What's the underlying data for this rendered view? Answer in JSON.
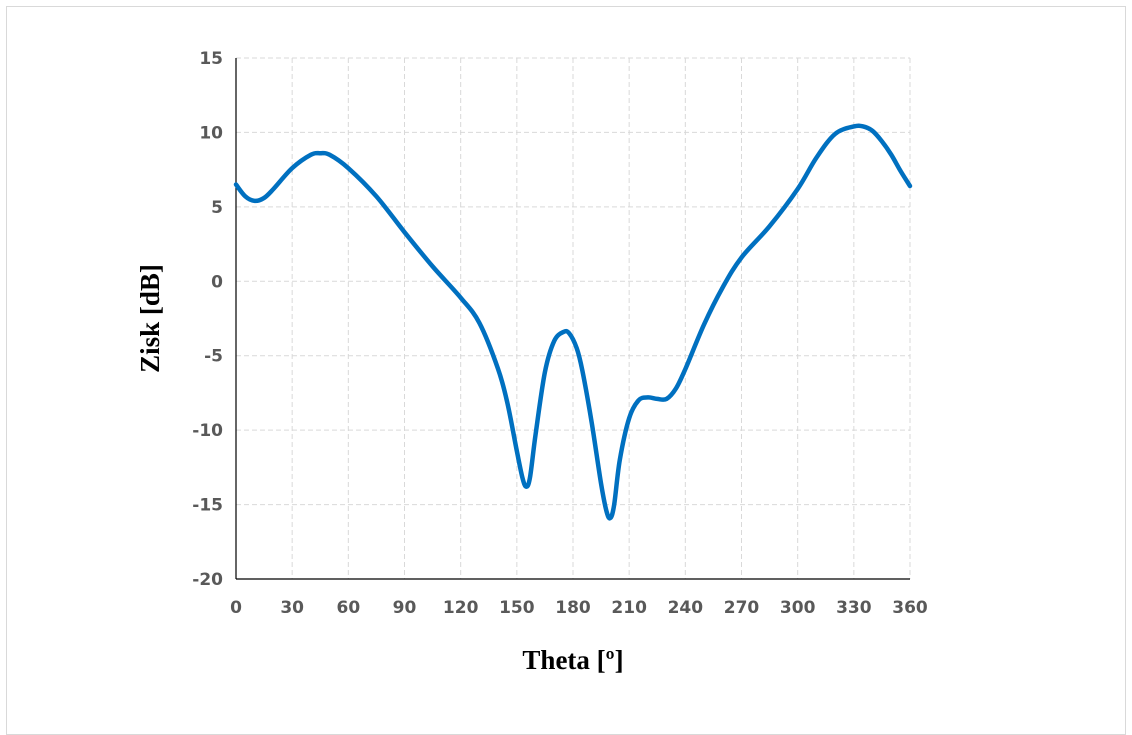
{
  "chart_data": {
    "type": "line",
    "title": "",
    "xlabel": "Theta [º]",
    "ylabel": "Zisk [dB]",
    "xlim": [
      0,
      360
    ],
    "ylim": [
      -20,
      15
    ],
    "x_ticks": [
      0,
      30,
      60,
      90,
      120,
      150,
      180,
      210,
      240,
      270,
      300,
      330,
      360
    ],
    "y_ticks": [
      -20,
      -15,
      -10,
      -5,
      0,
      5,
      10,
      15
    ],
    "grid": true,
    "legend": "none",
    "colors": {
      "series": "#0070c0",
      "grid": "#d9d9d9",
      "tick_text": "#595959"
    },
    "series": [
      {
        "x": [
          0,
          5,
          10,
          15,
          20,
          30,
          40,
          45,
          50,
          60,
          75,
          90,
          105,
          120,
          130,
          140,
          145,
          150,
          153,
          155,
          157,
          160,
          165,
          170,
          175,
          178,
          182,
          185,
          190,
          195,
          198,
          200,
          202,
          205,
          210,
          215,
          220,
          225,
          230,
          235,
          240,
          250,
          260,
          270,
          285,
          300,
          310,
          320,
          330,
          335,
          340,
          345,
          350,
          355,
          360
        ],
        "y": [
          6.5,
          5.7,
          5.4,
          5.6,
          6.2,
          7.6,
          8.5,
          8.6,
          8.5,
          7.6,
          5.7,
          3.3,
          1.0,
          -1.1,
          -2.8,
          -5.9,
          -8.2,
          -11.4,
          -13.2,
          -13.8,
          -13.2,
          -10.3,
          -6.1,
          -4.0,
          -3.4,
          -3.5,
          -4.5,
          -6.0,
          -9.5,
          -13.6,
          -15.5,
          -15.9,
          -15.0,
          -12.0,
          -9.2,
          -8.0,
          -7.8,
          -7.9,
          -7.9,
          -7.2,
          -5.9,
          -2.9,
          -0.4,
          1.6,
          3.7,
          6.2,
          8.3,
          9.9,
          10.4,
          10.4,
          10.1,
          9.4,
          8.5,
          7.4,
          6.4
        ]
      }
    ]
  }
}
